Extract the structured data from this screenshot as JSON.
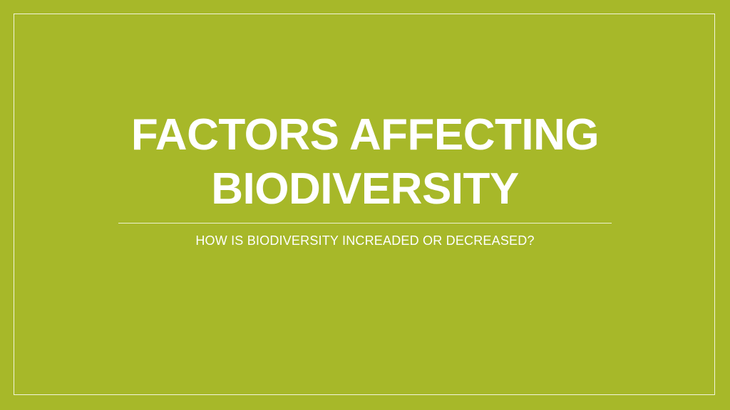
{
  "slide": {
    "title_line1": "FACTORS AFFECTING",
    "title_line2": "BIODIVERSITY",
    "subtitle": "HOW IS BIODIVERSITY INCREADED OR DECREASED?",
    "background_color": "#a7b829",
    "text_color": "#ffffff"
  }
}
